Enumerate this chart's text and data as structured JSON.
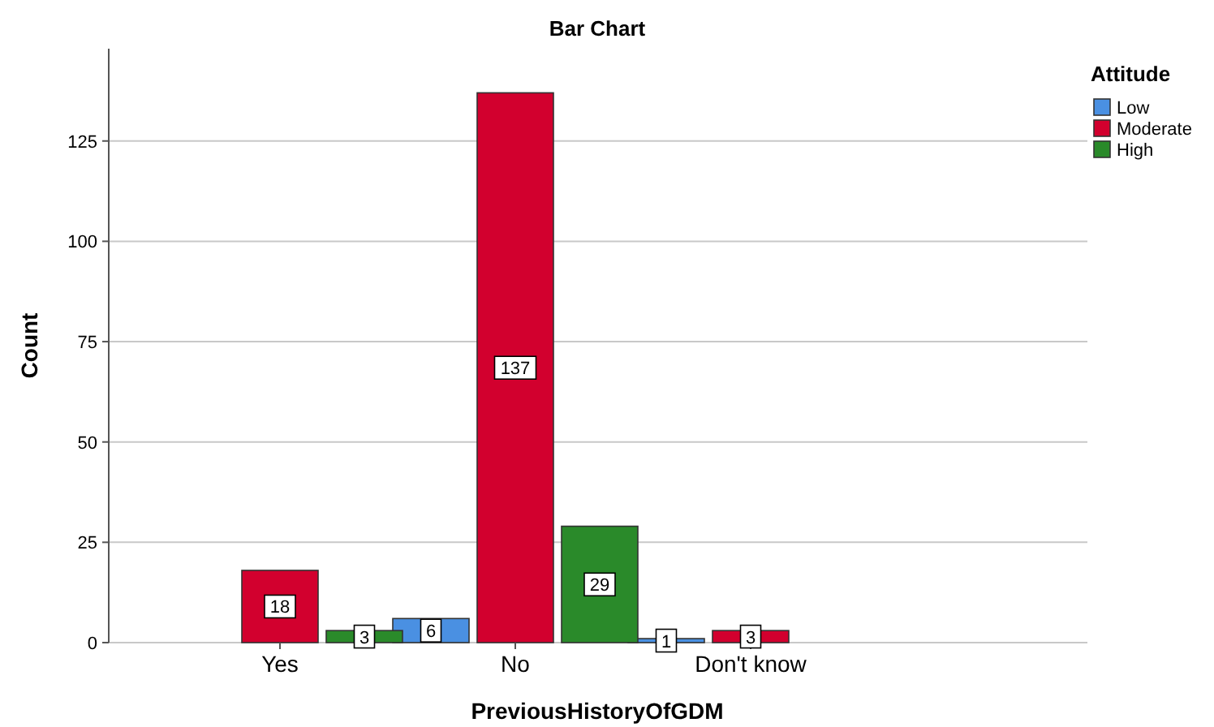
{
  "chart_data": {
    "type": "bar",
    "title": "Bar Chart",
    "xlabel": "PreviousHistoryOfGDM",
    "ylabel": "Count",
    "legend_title": "Attitude",
    "categories": [
      "Yes",
      "No",
      "Don't know"
    ],
    "series": [
      {
        "name": "Low",
        "color": "#4a90e2",
        "values": [
          null,
          6,
          1
        ]
      },
      {
        "name": "Moderate",
        "color": "#d2002e",
        "values": [
          18,
          137,
          3
        ]
      },
      {
        "name": "High",
        "color": "#2a8a2a",
        "values": [
          3,
          29,
          null
        ]
      }
    ],
    "ylim": [
      0,
      148
    ],
    "yticks": [
      0,
      25,
      50,
      75,
      100,
      125
    ],
    "grid": "y",
    "legend": "top right",
    "data_labels": true
  }
}
